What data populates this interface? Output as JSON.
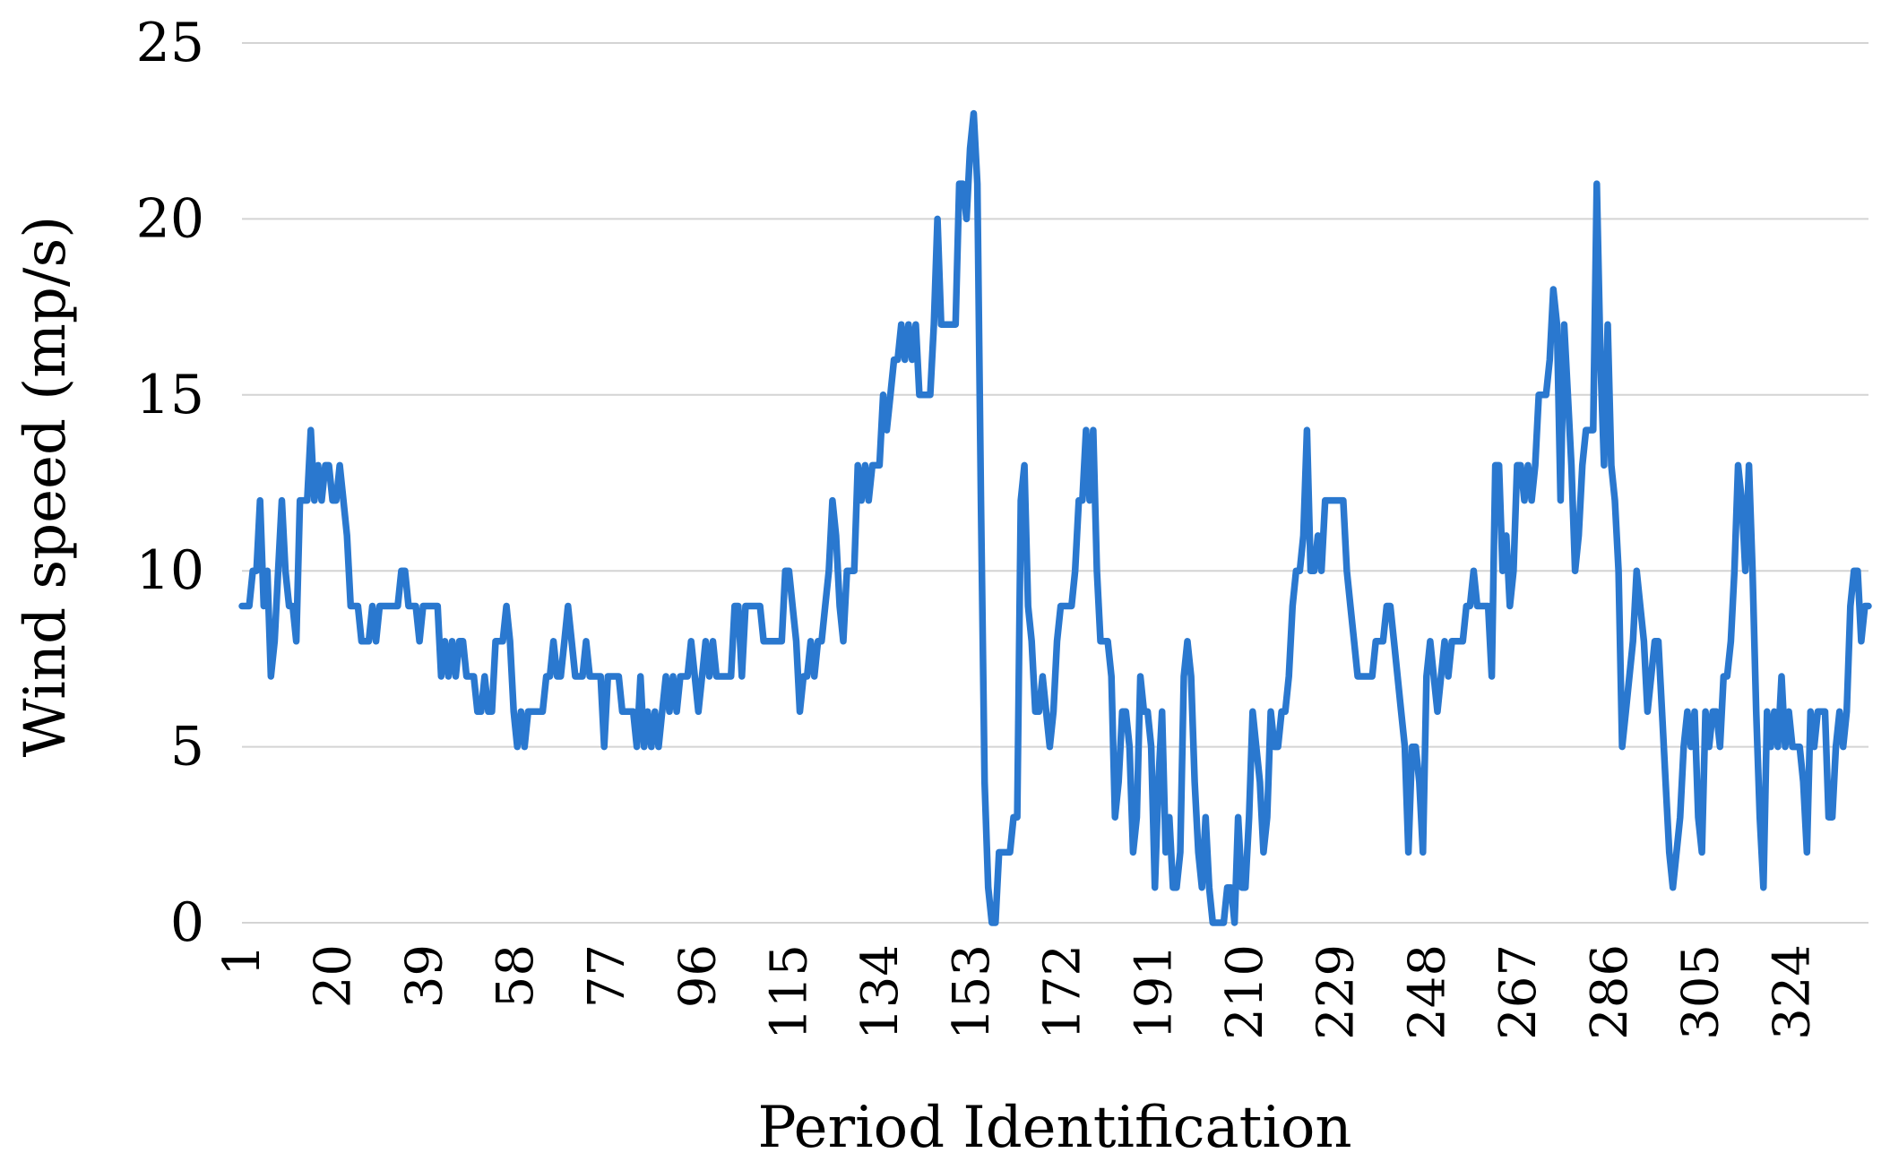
{
  "chart_data": {
    "type": "line",
    "title": "",
    "xlabel": "Period Identification",
    "ylabel": "Wind speed (mp/s)",
    "ylim": [
      0,
      25
    ],
    "xlim": [
      1,
      340
    ],
    "y_ticks": [
      "0",
      "5",
      "10",
      "15",
      "20",
      "25"
    ],
    "x_ticks": [
      "1",
      "20",
      "39",
      "58",
      "77",
      "96",
      "115",
      "134",
      "153",
      "172",
      "191",
      "210",
      "229",
      "248",
      "267",
      "286",
      "305",
      "324"
    ],
    "grid": "horizontal",
    "legend": "none",
    "color": "#2a78cf",
    "series": [
      {
        "values": [
          9,
          9,
          9,
          10,
          10,
          12,
          9,
          10,
          7,
          8,
          10,
          12,
          10,
          9,
          9,
          8,
          12,
          12,
          12,
          14,
          12,
          13,
          12,
          13,
          13,
          12,
          12,
          13,
          12,
          11,
          9,
          9,
          9,
          8,
          8,
          8,
          9,
          8,
          9,
          9,
          9,
          9,
          9,
          9,
          10,
          10,
          9,
          9,
          9,
          8,
          9,
          9,
          9,
          9,
          9,
          7,
          8,
          7,
          8,
          7,
          8,
          8,
          7,
          7,
          7,
          6,
          6,
          7,
          6,
          6,
          8,
          8,
          8,
          9,
          8,
          6,
          5,
          6,
          5,
          6,
          6,
          6,
          6,
          6,
          7,
          7,
          8,
          7,
          7,
          8,
          9,
          8,
          7,
          7,
          7,
          8,
          7,
          7,
          7,
          7,
          5,
          7,
          7,
          7,
          7,
          6,
          6,
          6,
          6,
          5,
          7,
          5,
          6,
          5,
          6,
          5,
          6,
          7,
          6,
          7,
          6,
          7,
          7,
          7,
          8,
          7,
          6,
          7,
          8,
          7,
          8,
          7,
          7,
          7,
          7,
          7,
          9,
          9,
          7,
          9,
          9,
          9,
          9,
          9,
          8,
          8,
          8,
          8,
          8,
          8,
          10,
          10,
          9,
          8,
          6,
          7,
          7,
          8,
          7,
          8,
          8,
          9,
          10,
          12,
          11,
          9,
          8,
          10,
          10,
          10,
          13,
          12,
          13,
          12,
          13,
          13,
          13,
          15,
          14,
          15,
          16,
          16,
          17,
          16,
          17,
          16,
          17,
          15,
          15,
          15,
          15,
          17,
          20,
          17,
          17,
          17,
          17,
          17,
          21,
          21,
          20,
          22,
          23,
          21,
          12,
          4,
          1,
          0,
          0,
          2,
          2,
          2,
          2,
          3,
          3,
          12,
          13,
          9,
          8,
          6,
          6,
          7,
          6,
          5,
          6,
          8,
          9,
          9,
          9,
          9,
          10,
          12,
          12,
          14,
          12,
          14,
          10,
          8,
          8,
          8,
          7,
          3,
          4,
          6,
          6,
          5,
          2,
          3,
          7,
          6,
          6,
          5,
          1,
          4,
          6,
          2,
          3,
          1,
          1,
          2,
          7,
          8,
          7,
          4,
          2,
          1,
          3,
          1,
          0,
          0,
          0,
          0,
          1,
          1,
          0,
          3,
          1,
          1,
          3,
          6,
          5,
          4,
          2,
          3,
          6,
          5,
          5,
          6,
          6,
          7,
          9,
          10,
          10,
          11,
          14,
          10,
          10,
          11,
          10,
          12,
          12,
          12,
          12,
          12,
          12,
          10,
          9,
          8,
          7,
          7,
          7,
          7,
          7,
          8,
          8,
          8,
          9,
          9,
          8,
          7,
          6,
          5,
          2,
          5,
          5,
          4,
          2,
          7,
          8,
          7,
          6,
          7,
          8,
          7,
          8,
          8,
          8,
          8,
          9,
          9,
          10,
          9,
          9,
          9,
          9,
          7,
          13,
          13,
          10,
          11,
          9,
          10,
          13,
          13,
          12,
          13,
          12,
          13,
          15,
          15,
          15,
          16,
          18,
          17,
          12,
          17,
          15,
          13,
          10,
          11,
          13,
          14,
          14,
          14,
          21,
          16,
          13,
          17,
          13,
          12,
          10,
          5,
          6,
          7,
          8,
          10,
          9,
          8,
          6,
          7,
          8,
          8,
          6,
          4,
          2,
          1,
          2,
          3,
          5,
          6,
          5,
          6,
          3,
          2,
          6,
          5,
          6,
          6,
          5,
          7,
          7,
          8,
          10,
          13,
          12,
          10,
          13,
          10,
          6,
          3,
          1,
          6,
          5,
          6,
          5,
          7,
          5,
          6,
          5,
          5,
          5,
          4,
          2,
          6,
          5,
          6,
          6,
          6,
          3,
          3,
          5,
          6,
          5,
          6,
          9,
          10,
          10,
          8,
          9,
          9
        ]
      }
    ]
  }
}
